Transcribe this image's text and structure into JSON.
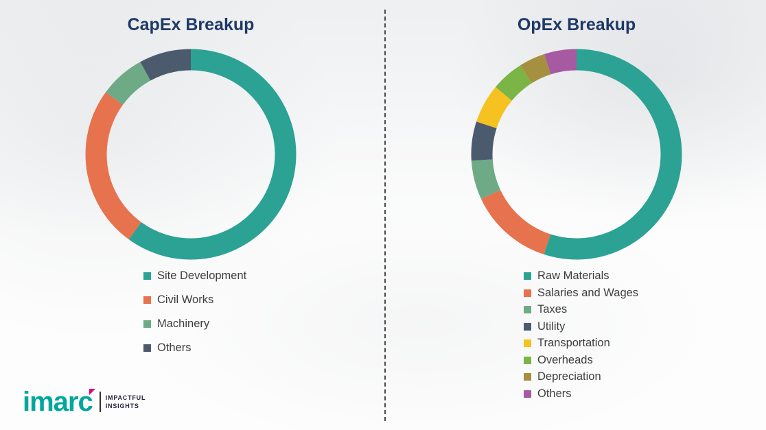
{
  "chart_data": [
    {
      "type": "pie",
      "title": "CapEx Breakup",
      "labels": [
        "Site Development",
        "Civil Works",
        "Machinery",
        "Others"
      ],
      "values": [
        60,
        25,
        7,
        8
      ],
      "colors": [
        "#2BA294",
        "#E7724E",
        "#6EAA86",
        "#4C5A6E"
      ],
      "legend_position": "bottom",
      "donut": true
    },
    {
      "type": "pie",
      "title": "OpEx Breakup",
      "labels": [
        "Raw Materials",
        "Salaries and Wages",
        "Taxes",
        "Utility",
        "Transportation",
        "Overheads",
        "Depreciation",
        "Others"
      ],
      "values": [
        55,
        13,
        6,
        6,
        6,
        5,
        4,
        5
      ],
      "colors": [
        "#2BA294",
        "#E7724E",
        "#6EAA86",
        "#4C5A6E",
        "#F6C222",
        "#7AB545",
        "#A5903F",
        "#A55AA1"
      ],
      "legend_position": "bottom",
      "donut": true
    }
  ],
  "divider_style": "dashed-vertical",
  "logo": {
    "brand": "imarc",
    "tagline_line1": "IMPACTFUL",
    "tagline_line2": "INSIGHTS",
    "brand_color": "#00A79D",
    "accent_color": "#E6007E"
  },
  "title_color": "#1F3966"
}
